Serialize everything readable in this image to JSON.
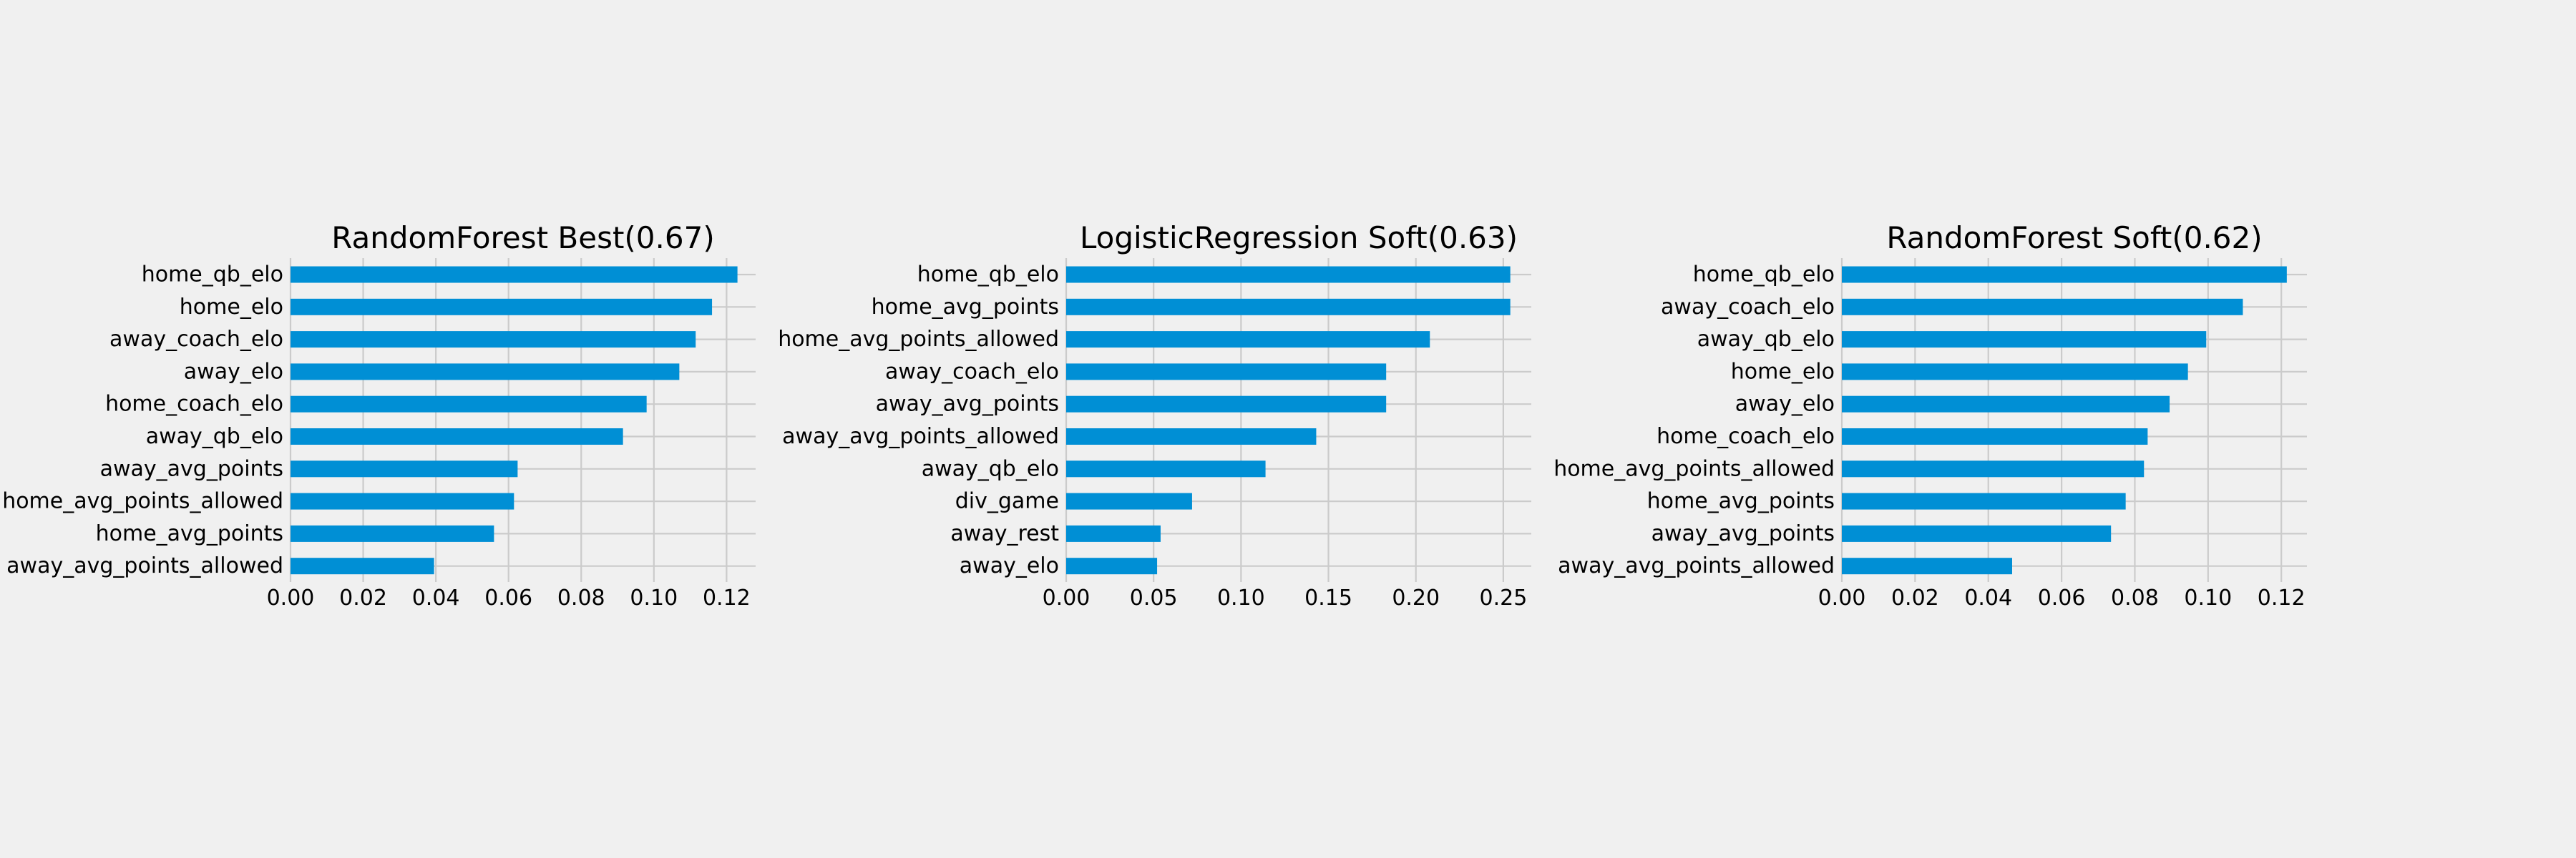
{
  "figure": {
    "background": "#f0f0f0",
    "bar_color": "#008fd5",
    "grid_color": "#cbcbcb"
  },
  "chart_data": [
    {
      "type": "bar",
      "orientation": "horizontal",
      "title": "RandomForest Best(0.67)",
      "categories": [
        "home_qb_elo",
        "home_elo",
        "away_coach_elo",
        "away_elo",
        "home_coach_elo",
        "away_qb_elo",
        "away_avg_points",
        "home_avg_points_allowed",
        "home_avg_points",
        "away_avg_points_allowed"
      ],
      "values": [
        0.123,
        0.116,
        0.1115,
        0.107,
        0.098,
        0.0915,
        0.0625,
        0.0615,
        0.056,
        0.0395
      ],
      "xlim": [
        0,
        0.128
      ],
      "xticks": [
        0.0,
        0.02,
        0.04,
        0.06,
        0.08,
        0.1,
        0.12
      ],
      "xtick_labels": [
        "0.00",
        "0.02",
        "0.04",
        "0.06",
        "0.08",
        "0.10",
        "0.12"
      ],
      "grid": true
    },
    {
      "type": "bar",
      "orientation": "horizontal",
      "title": "LogisticRegression Soft(0.63)",
      "categories": [
        "home_qb_elo",
        "home_avg_points",
        "home_avg_points_allowed",
        "away_coach_elo",
        "away_avg_points",
        "away_avg_points_allowed",
        "away_qb_elo",
        "div_game",
        "away_rest",
        "away_elo"
      ],
      "values": [
        0.254,
        0.254,
        0.208,
        0.183,
        0.183,
        0.143,
        0.114,
        0.072,
        0.054,
        0.052
      ],
      "xlim": [
        0,
        0.266
      ],
      "xticks": [
        0.0,
        0.05,
        0.1,
        0.15,
        0.2,
        0.25
      ],
      "xtick_labels": [
        "0.00",
        "0.05",
        "0.10",
        "0.15",
        "0.20",
        "0.25"
      ],
      "grid": true
    },
    {
      "type": "bar",
      "orientation": "horizontal",
      "title": "RandomForest Soft(0.62)",
      "categories": [
        "home_qb_elo",
        "away_coach_elo",
        "away_qb_elo",
        "home_elo",
        "away_elo",
        "home_coach_elo",
        "home_avg_points_allowed",
        "home_avg_points",
        "away_avg_points",
        "away_avg_points_allowed"
      ],
      "values": [
        0.1215,
        0.1095,
        0.0995,
        0.0945,
        0.0895,
        0.0835,
        0.0825,
        0.0775,
        0.0735,
        0.0465
      ],
      "xlim": [
        0,
        0.127
      ],
      "xticks": [
        0.0,
        0.02,
        0.04,
        0.06,
        0.08,
        0.1,
        0.12
      ],
      "xtick_labels": [
        "0.00",
        "0.02",
        "0.04",
        "0.06",
        "0.08",
        "0.10",
        "0.12"
      ],
      "grid": true
    }
  ]
}
